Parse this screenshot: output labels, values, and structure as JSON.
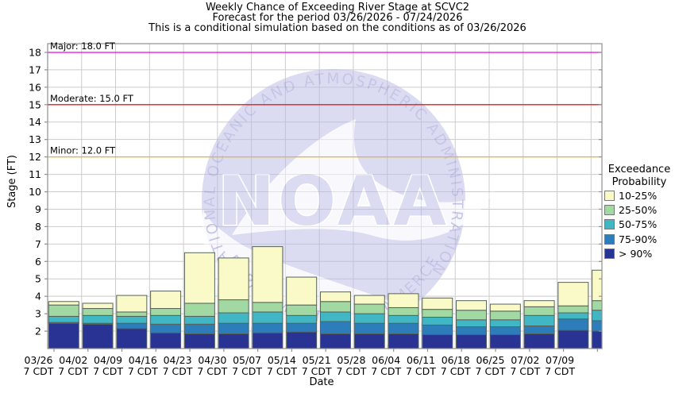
{
  "title": {
    "line1": "Weekly Chance of Exceeding River Stage at SCVC2",
    "line2": "Forecast for the period 03/26/2026 - 07/24/2026",
    "line3": "This is a conditional simulation based on the conditions as of 03/26/2026"
  },
  "axes": {
    "y_label": "Stage (FT)",
    "x_label": "Date",
    "y_ticks": [
      2,
      3,
      4,
      5,
      6,
      7,
      8,
      9,
      10,
      11,
      12,
      13,
      14,
      15,
      16,
      17,
      18
    ],
    "x_sublabel": "7 CDT"
  },
  "reflines": [
    {
      "name": "major",
      "label": "Major: 18.0 FT",
      "value": 18,
      "color": "#ee00ee"
    },
    {
      "name": "moderate",
      "label": "Moderate: 15.0 FT",
      "value": 15,
      "color": "#e02020"
    },
    {
      "name": "minor",
      "label": "Minor: 12.0 FT",
      "value": 12,
      "color": "#f0b800"
    }
  ],
  "legend": {
    "title_line1": "Exceedance",
    "title_line2": "Probability",
    "items": [
      {
        "label": "10-25%",
        "color": "#fafac8"
      },
      {
        "label": "25-50%",
        "color": "#a2d8a2"
      },
      {
        "label": "50-75%",
        "color": "#41b6c4"
      },
      {
        "label": "75-90%",
        "color": "#2d7dba"
      },
      {
        "label": "> 90%",
        "color": "#283394"
      }
    ]
  },
  "watermark": {
    "center_text": "NOAA",
    "arc_top": "NATIONAL OCEANIC AND ATMOSPHERIC ADMINISTRATION",
    "arc_bottom": "DEPARTMENT OF COMMERCE"
  },
  "chart_data": {
    "type": "bar",
    "stacked": true,
    "title": "Weekly Chance of Exceeding River Stage at SCVC2",
    "xlabel": "Date",
    "ylabel": "Stage (FT)",
    "ylim": [
      1.0,
      18.5
    ],
    "grid": true,
    "legend_position": "right",
    "baseline": 1.0,
    "series_order_bottom_to_top": [
      "> 90%",
      "75-90%",
      "50-75%",
      "25-50%",
      "10-25%"
    ],
    "series_colors": [
      "#283394",
      "#2d7dba",
      "#41b6c4",
      "#a2d8a2",
      "#fafac8"
    ],
    "segment_border_color": "#566358",
    "categories": [
      "03/26",
      "04/02",
      "04/09",
      "04/16",
      "04/23",
      "04/30",
      "05/07",
      "05/14",
      "05/21",
      "05/28",
      "06/04",
      "06/11",
      "06/18",
      "06/25",
      "07/02",
      "07/09"
    ],
    "bars": [
      {
        "label": "03/26",
        "tops": [
          2.45,
          2.5,
          2.85,
          3.5,
          3.7
        ]
      },
      {
        "label": "04/02",
        "tops": [
          2.4,
          2.45,
          2.9,
          3.3,
          3.6
        ]
      },
      {
        "label": "04/09",
        "tops": [
          2.15,
          2.45,
          2.85,
          3.1,
          4.05
        ]
      },
      {
        "label": "04/16",
        "tops": [
          1.9,
          2.4,
          2.9,
          3.3,
          4.3
        ]
      },
      {
        "label": "04/23",
        "tops": [
          1.85,
          2.4,
          2.85,
          3.6,
          6.5
        ]
      },
      {
        "label": "04/30",
        "tops": [
          1.85,
          2.45,
          3.05,
          3.8,
          6.2
        ]
      },
      {
        "label": "05/07",
        "tops": [
          1.9,
          2.45,
          3.1,
          3.65,
          6.85
        ]
      },
      {
        "label": "05/14",
        "tops": [
          1.95,
          2.45,
          2.9,
          3.5,
          5.1
        ]
      },
      {
        "label": "05/21",
        "tops": [
          1.85,
          2.55,
          3.1,
          3.7,
          4.25
        ]
      },
      {
        "label": "05/28",
        "tops": [
          1.85,
          2.45,
          3.0,
          3.55,
          4.05
        ]
      },
      {
        "label": "06/04",
        "tops": [
          1.85,
          2.45,
          2.9,
          3.35,
          4.15
        ]
      },
      {
        "label": "06/11",
        "tops": [
          1.8,
          2.35,
          2.8,
          3.25,
          3.9
        ]
      },
      {
        "label": "06/18",
        "tops": [
          1.8,
          2.25,
          2.65,
          3.2,
          3.75
        ]
      },
      {
        "label": "06/25",
        "tops": [
          1.8,
          2.25,
          2.65,
          3.15,
          3.55
        ]
      },
      {
        "label": "07/02",
        "tops": [
          1.85,
          2.3,
          2.9,
          3.4,
          3.75
        ]
      },
      {
        "label": "07/09",
        "tops": [
          2.05,
          2.7,
          3.05,
          3.45,
          4.8
        ]
      },
      {
        "label": null,
        "clipped": true,
        "tops": [
          2.0,
          2.6,
          3.2,
          3.75,
          5.5
        ]
      }
    ]
  },
  "colors": {
    "gridline": "#cccccc",
    "frame": "#909090",
    "watermark_blue": "#b9b9e6"
  }
}
